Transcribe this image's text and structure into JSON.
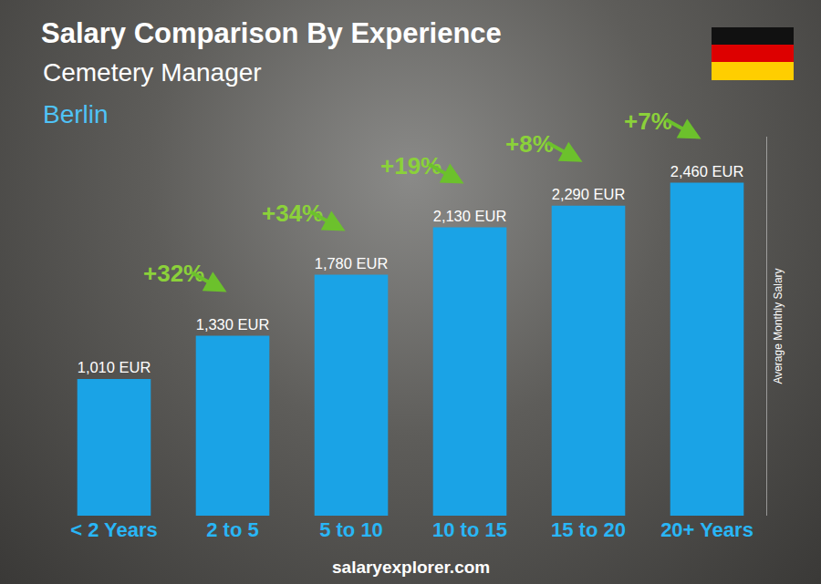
{
  "chart_data": {
    "type": "bar",
    "title": "Salary Comparison By Experience",
    "subtitle": "Cemetery Manager",
    "location": "Berlin",
    "y_label": "Average Monthly Salary",
    "source": "salaryexplorer.com",
    "categories": [
      "< 2 Years",
      "2 to 5",
      "5 to 10",
      "10 to 15",
      "15 to 20",
      "20+ Years"
    ],
    "values": [
      1010,
      1330,
      1780,
      2130,
      2290,
      2460
    ],
    "value_labels": [
      "1,010 EUR",
      "1,330 EUR",
      "1,780 EUR",
      "2,130 EUR",
      "2,290 EUR",
      "2,460 EUR"
    ],
    "change_labels": [
      "+32%",
      "+34%",
      "+19%",
      "+8%",
      "+7%"
    ],
    "color": "#1aa3e6",
    "ylim": [
      0,
      2800
    ],
    "yticks": [],
    "grid": false,
    "data_labels": true,
    "tick_labels": "x"
  }
}
